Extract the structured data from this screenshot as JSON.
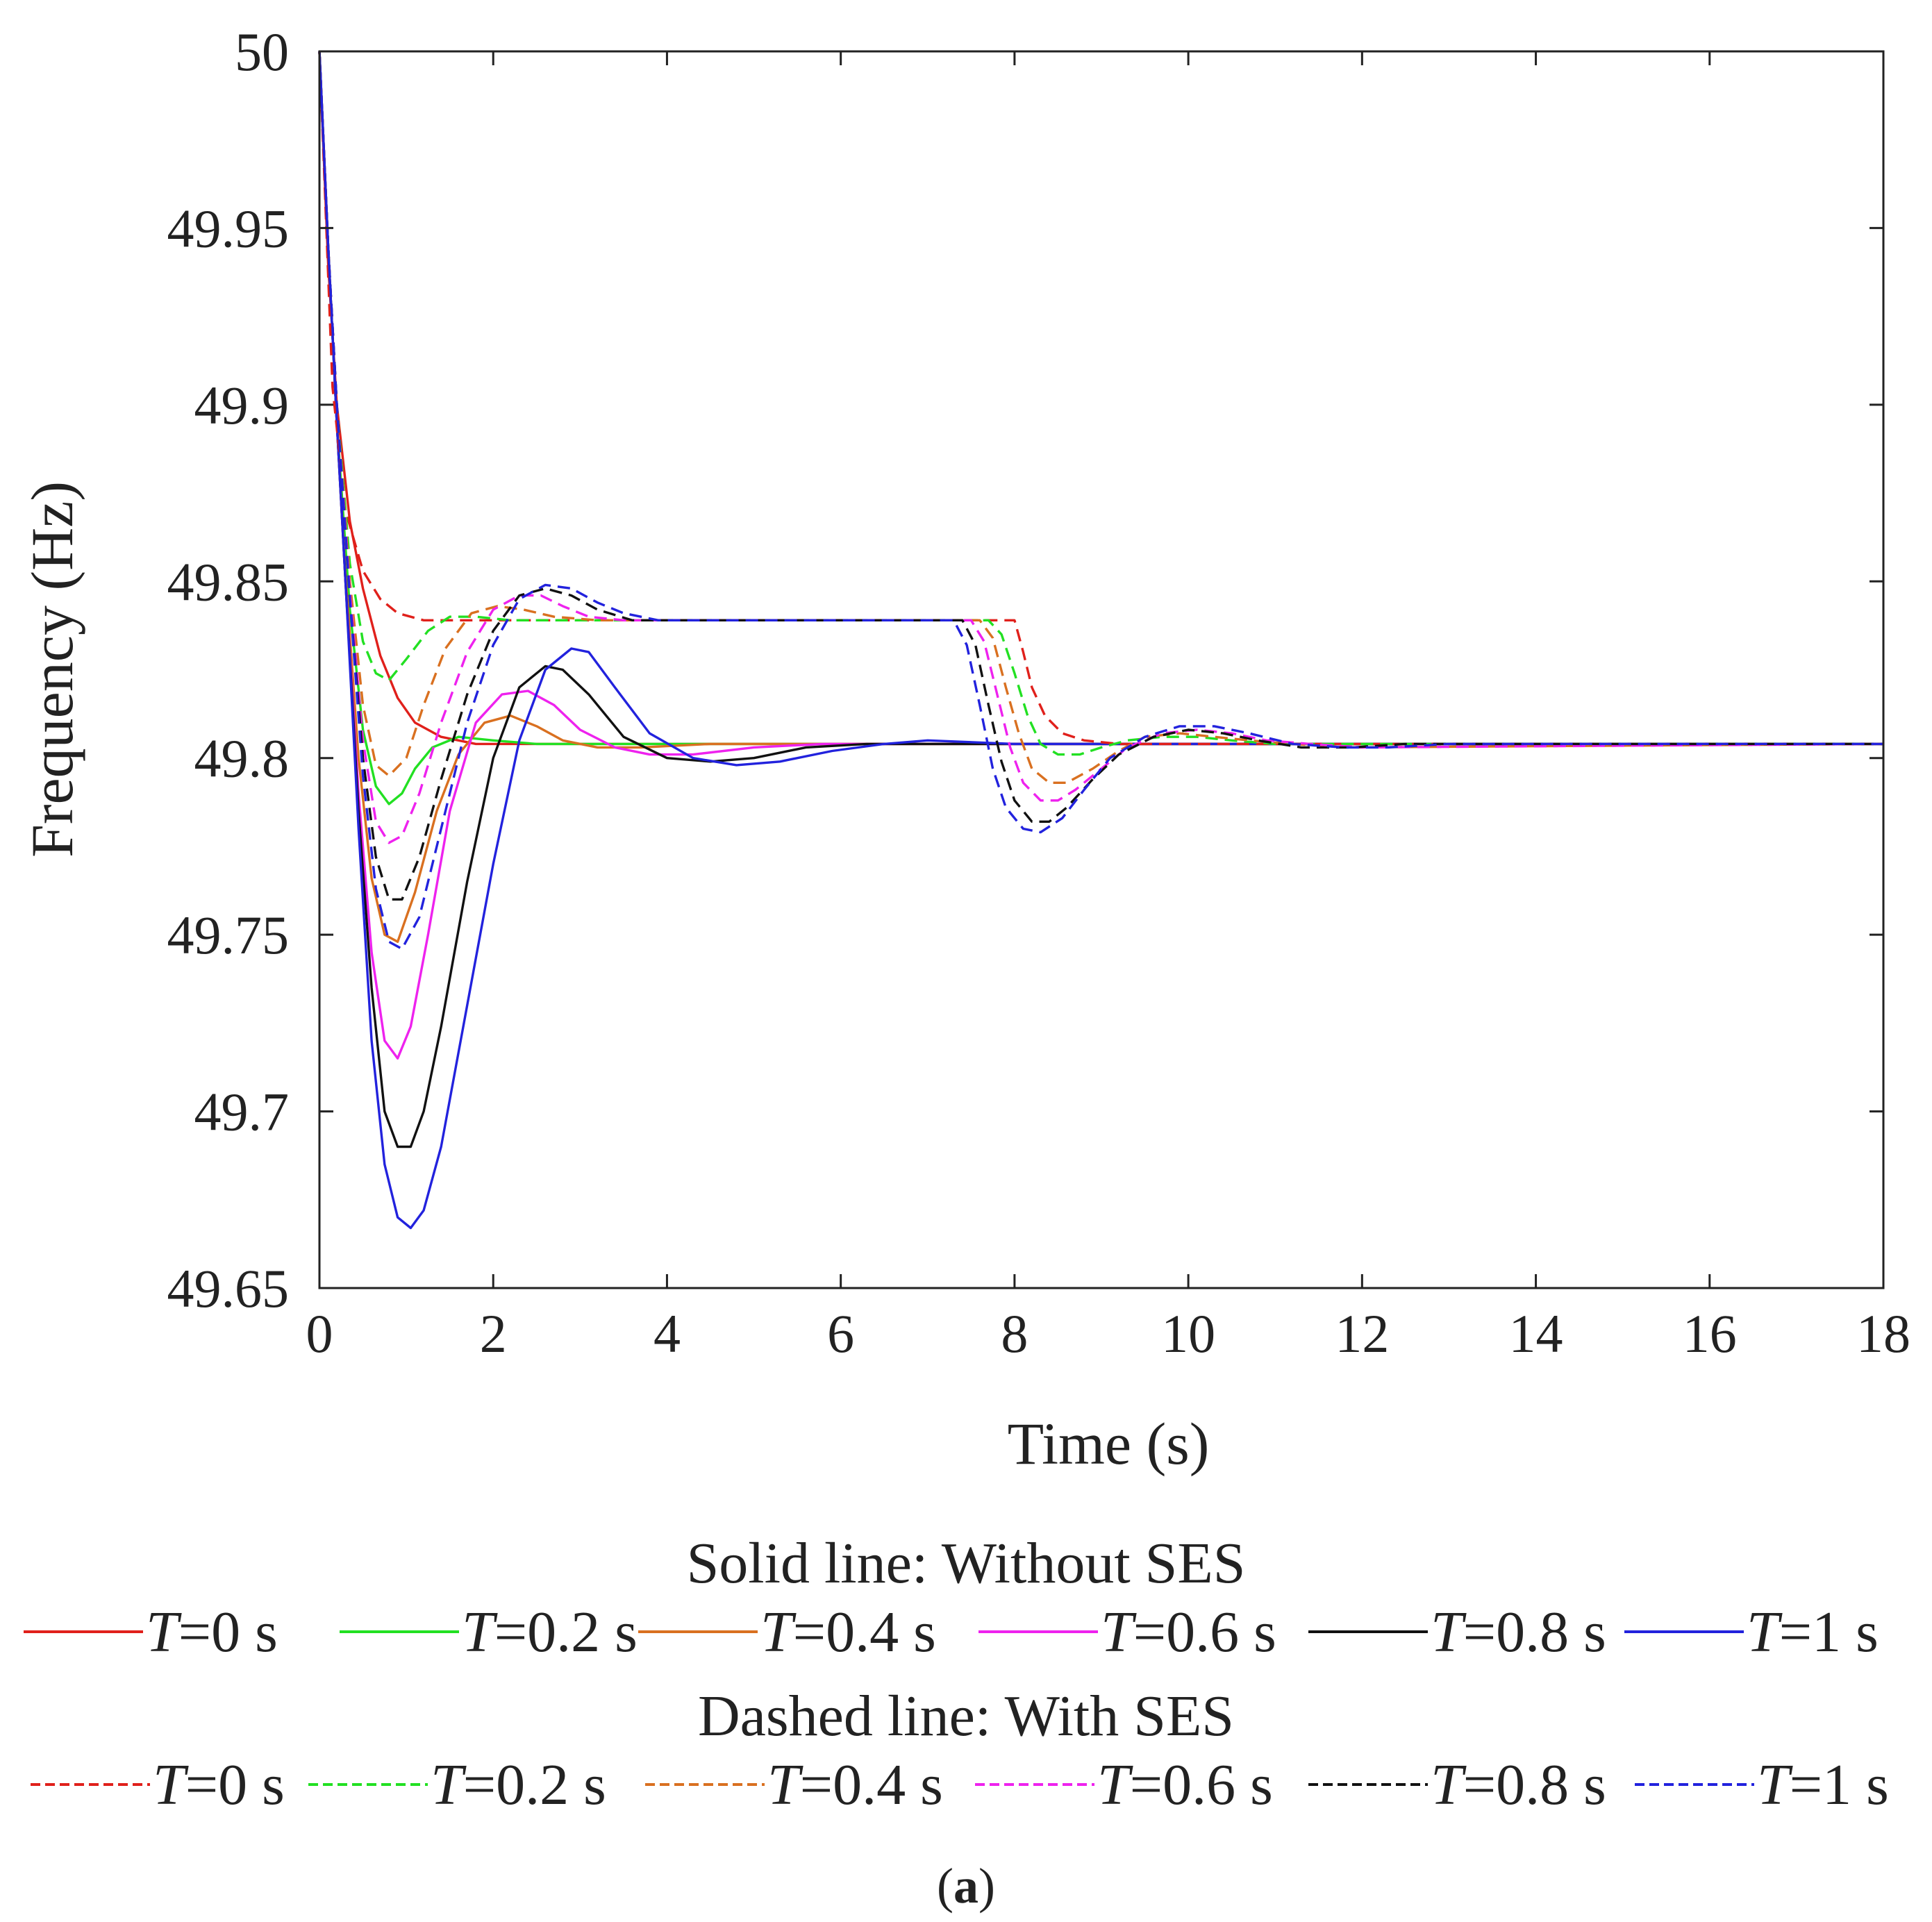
{
  "chart_data": {
    "type": "line",
    "xlabel": "Time (s)",
    "ylabel": "Frequency (Hz)",
    "xlim": [
      0,
      18
    ],
    "ylim": [
      49.65,
      50
    ],
    "xticks": [
      0,
      2,
      4,
      6,
      8,
      10,
      12,
      14,
      16,
      18
    ],
    "xtick_labels": [
      "0",
      "2",
      "4",
      "6",
      "8",
      "10",
      "12",
      "14",
      "16",
      "18"
    ],
    "yticks": [
      49.65,
      49.7,
      49.75,
      49.8,
      49.85,
      49.9,
      49.95,
      50
    ],
    "ytick_labels": [
      "49.65",
      "49.7",
      "49.75",
      "49.8",
      "49.85",
      "49.9",
      "49.95",
      "50"
    ],
    "grid": false,
    "series": [
      {
        "name": "T=0 s",
        "group": "without",
        "color": "#e0201b",
        "dash": false,
        "x": [
          0,
          0.1,
          0.2,
          0.35,
          0.5,
          0.7,
          0.9,
          1.1,
          1.4,
          1.8,
          2.4,
          18
        ],
        "y": [
          50,
          49.94,
          49.9,
          49.867,
          49.848,
          49.829,
          49.817,
          49.81,
          49.806,
          49.804,
          49.804,
          49.804
        ]
      },
      {
        "name": "T=0.2 s",
        "group": "without",
        "color": "#22e022",
        "dash": false,
        "x": [
          0,
          0.1,
          0.2,
          0.35,
          0.5,
          0.65,
          0.8,
          0.95,
          1.1,
          1.3,
          1.6,
          2.0,
          2.5,
          3.0,
          18
        ],
        "y": [
          50,
          49.945,
          49.895,
          49.842,
          49.808,
          49.792,
          49.787,
          49.79,
          49.797,
          49.803,
          49.806,
          49.805,
          49.804,
          49.804,
          49.804
        ]
      },
      {
        "name": "T=0.4 s",
        "group": "without",
        "color": "#d97020",
        "dash": false,
        "x": [
          0,
          0.1,
          0.2,
          0.3,
          0.45,
          0.6,
          0.75,
          0.9,
          1.1,
          1.35,
          1.6,
          1.9,
          2.2,
          2.5,
          2.8,
          3.2,
          3.7,
          4.5,
          18
        ],
        "y": [
          50,
          49.945,
          49.895,
          49.852,
          49.8,
          49.766,
          49.75,
          49.748,
          49.762,
          49.785,
          49.801,
          49.81,
          49.812,
          49.809,
          49.805,
          49.803,
          49.803,
          49.804,
          49.804
        ]
      },
      {
        "name": "T=0.6 s",
        "group": "without",
        "color": "#ee22ee",
        "dash": false,
        "x": [
          0,
          0.1,
          0.2,
          0.3,
          0.45,
          0.6,
          0.75,
          0.9,
          1.05,
          1.25,
          1.5,
          1.8,
          2.1,
          2.4,
          2.7,
          3.0,
          3.4,
          3.8,
          4.3,
          5.0,
          5.8,
          18
        ],
        "y": [
          50,
          49.945,
          49.895,
          49.85,
          49.79,
          49.745,
          49.72,
          49.715,
          49.724,
          49.75,
          49.785,
          49.81,
          49.818,
          49.819,
          49.815,
          49.808,
          49.803,
          49.801,
          49.801,
          49.803,
          49.804,
          49.804
        ]
      },
      {
        "name": "T=0.8 s",
        "group": "without",
        "color": "#111111",
        "dash": false,
        "x": [
          0,
          0.1,
          0.2,
          0.3,
          0.45,
          0.6,
          0.75,
          0.9,
          1.05,
          1.2,
          1.4,
          1.7,
          2.0,
          2.3,
          2.6,
          2.8,
          3.1,
          3.5,
          4.0,
          4.5,
          5.0,
          5.6,
          6.3,
          7.0,
          18
        ],
        "y": [
          50,
          49.945,
          49.895,
          49.85,
          49.785,
          49.735,
          49.7,
          49.69,
          49.69,
          49.7,
          49.724,
          49.765,
          49.8,
          49.82,
          49.826,
          49.825,
          49.818,
          49.806,
          49.8,
          49.799,
          49.8,
          49.803,
          49.804,
          49.804,
          49.804
        ]
      },
      {
        "name": "T=1 s",
        "group": "without",
        "color": "#2222dd",
        "dash": false,
        "x": [
          0,
          0.1,
          0.2,
          0.3,
          0.45,
          0.6,
          0.75,
          0.9,
          1.05,
          1.2,
          1.4,
          1.7,
          2.0,
          2.3,
          2.6,
          2.9,
          3.1,
          3.4,
          3.8,
          4.3,
          4.8,
          5.3,
          5.9,
          6.5,
          7.0,
          8.0,
          18
        ],
        "y": [
          50,
          49.945,
          49.895,
          49.85,
          49.78,
          49.72,
          49.685,
          49.67,
          49.667,
          49.672,
          49.69,
          49.73,
          49.77,
          49.805,
          49.825,
          49.831,
          49.83,
          49.82,
          49.807,
          49.8,
          49.798,
          49.799,
          49.802,
          49.804,
          49.805,
          49.804,
          49.804
        ]
      },
      {
        "name": "T=0 s",
        "group": "with",
        "color": "#e0201b",
        "dash": true,
        "x": [
          0,
          0.15,
          0.3,
          0.5,
          0.7,
          0.9,
          1.2,
          1.6,
          2.0,
          7.85,
          8.0,
          8.1,
          8.2,
          8.35,
          8.55,
          8.8,
          9.2,
          9.8,
          10.5,
          18
        ],
        "y": [
          50,
          49.905,
          49.87,
          49.853,
          49.845,
          49.841,
          49.839,
          49.839,
          49.839,
          49.839,
          49.839,
          49.83,
          49.82,
          49.812,
          49.807,
          49.805,
          49.804,
          49.804,
          49.804,
          49.804
        ]
      },
      {
        "name": "T=0.2 s",
        "group": "with",
        "color": "#22e022",
        "dash": true,
        "x": [
          0,
          0.1,
          0.2,
          0.35,
          0.5,
          0.65,
          0.8,
          1.0,
          1.25,
          1.5,
          1.8,
          2.2,
          7.7,
          7.85,
          8.0,
          8.15,
          8.3,
          8.5,
          8.75,
          9.0,
          9.3,
          9.7,
          10.1,
          10.5,
          11.0,
          18
        ],
        "y": [
          50,
          49.945,
          49.9,
          49.855,
          49.833,
          49.824,
          49.822,
          49.828,
          49.836,
          49.84,
          49.84,
          49.839,
          49.839,
          49.835,
          49.824,
          49.812,
          49.804,
          49.801,
          49.801,
          49.803,
          49.805,
          49.806,
          49.806,
          49.805,
          49.804,
          49.804
        ]
      },
      {
        "name": "T=0.4 s",
        "group": "with",
        "color": "#d97020",
        "dash": true,
        "x": [
          0,
          0.1,
          0.2,
          0.35,
          0.5,
          0.65,
          0.8,
          1.0,
          1.2,
          1.45,
          1.75,
          2.05,
          2.35,
          2.7,
          3.2,
          4.0,
          7.6,
          7.75,
          7.9,
          8.05,
          8.2,
          8.4,
          8.6,
          8.9,
          9.2,
          9.5,
          9.9,
          10.3,
          10.7,
          11.2,
          11.8,
          18
        ],
        "y": [
          50,
          49.945,
          49.9,
          49.85,
          49.815,
          49.798,
          49.795,
          49.8,
          49.815,
          49.831,
          49.841,
          49.843,
          49.842,
          49.84,
          49.839,
          49.839,
          49.839,
          49.834,
          49.82,
          49.807,
          49.797,
          49.793,
          49.793,
          49.797,
          49.802,
          49.806,
          49.807,
          49.806,
          49.805,
          49.804,
          49.803,
          49.804
        ]
      },
      {
        "name": "T=0.6 s",
        "group": "with",
        "color": "#ee22ee",
        "dash": true,
        "x": [
          0,
          0.1,
          0.2,
          0.35,
          0.5,
          0.65,
          0.8,
          0.95,
          1.15,
          1.4,
          1.7,
          2.0,
          2.3,
          2.55,
          2.8,
          3.1,
          3.5,
          4.2,
          7.5,
          7.65,
          7.8,
          7.95,
          8.1,
          8.3,
          8.5,
          8.7,
          9.0,
          9.3,
          9.7,
          10.1,
          10.5,
          10.9,
          11.4,
          12.0,
          18
        ],
        "y": [
          50,
          49.945,
          49.9,
          49.847,
          49.805,
          49.782,
          49.776,
          49.778,
          49.79,
          49.81,
          49.83,
          49.842,
          49.846,
          49.846,
          49.843,
          49.84,
          49.839,
          49.839,
          49.839,
          49.833,
          49.818,
          49.803,
          49.793,
          49.788,
          49.788,
          49.791,
          49.797,
          49.803,
          49.807,
          49.808,
          49.807,
          49.805,
          49.804,
          49.803,
          49.804
        ]
      },
      {
        "name": "T=0.8 s",
        "group": "with",
        "color": "#111111",
        "dash": true,
        "x": [
          0,
          0.1,
          0.2,
          0.35,
          0.5,
          0.65,
          0.8,
          0.95,
          1.15,
          1.4,
          1.7,
          2.0,
          2.3,
          2.6,
          2.9,
          3.2,
          3.6,
          4.2,
          7.4,
          7.55,
          7.7,
          7.85,
          8.0,
          8.2,
          8.4,
          8.6,
          8.9,
          9.2,
          9.6,
          10.0,
          10.4,
          10.8,
          11.3,
          11.9,
          12.5,
          18
        ],
        "y": [
          50,
          49.945,
          49.9,
          49.845,
          49.8,
          49.772,
          49.76,
          49.76,
          49.772,
          49.794,
          49.818,
          49.836,
          49.846,
          49.848,
          49.846,
          49.842,
          49.839,
          49.839,
          49.839,
          49.832,
          49.815,
          49.799,
          49.788,
          49.782,
          49.782,
          49.786,
          49.794,
          49.801,
          49.806,
          49.808,
          49.807,
          49.805,
          49.803,
          49.803,
          49.804,
          49.804
        ]
      },
      {
        "name": "T=1 s",
        "group": "with",
        "color": "#2222dd",
        "dash": true,
        "x": [
          0,
          0.1,
          0.2,
          0.35,
          0.5,
          0.65,
          0.8,
          0.95,
          1.15,
          1.4,
          1.7,
          2.0,
          2.3,
          2.6,
          2.9,
          3.2,
          3.5,
          3.9,
          4.5,
          7.3,
          7.45,
          7.6,
          7.75,
          7.9,
          8.1,
          8.3,
          8.55,
          8.8,
          9.1,
          9.5,
          9.9,
          10.3,
          10.7,
          11.2,
          11.8,
          12.3,
          13.0,
          18
        ],
        "y": [
          50,
          49.945,
          49.9,
          49.845,
          49.795,
          49.763,
          49.748,
          49.746,
          49.755,
          49.78,
          49.81,
          49.832,
          49.845,
          49.849,
          49.848,
          49.844,
          49.841,
          49.839,
          49.839,
          49.839,
          49.832,
          49.815,
          49.797,
          49.786,
          49.78,
          49.779,
          49.783,
          49.791,
          49.8,
          49.806,
          49.809,
          49.809,
          49.807,
          49.804,
          49.803,
          49.803,
          49.804,
          49.804
        ]
      }
    ]
  },
  "legend": {
    "without_title": "Solid line: Without SES",
    "with_title": "Dashed line: With SES",
    "entries": [
      {
        "italic": "T",
        "rest": "=0 s"
      },
      {
        "italic": "T",
        "rest": "=0.2 s"
      },
      {
        "italic": "T",
        "rest": "=0.4 s"
      },
      {
        "italic": "T",
        "rest": "=0.6 s"
      },
      {
        "italic": "T",
        "rest": "=0.8 s"
      },
      {
        "italic": "T",
        "rest": "=1 s"
      }
    ]
  },
  "caption": {
    "open": "(",
    "label": "a",
    "close": ")"
  }
}
